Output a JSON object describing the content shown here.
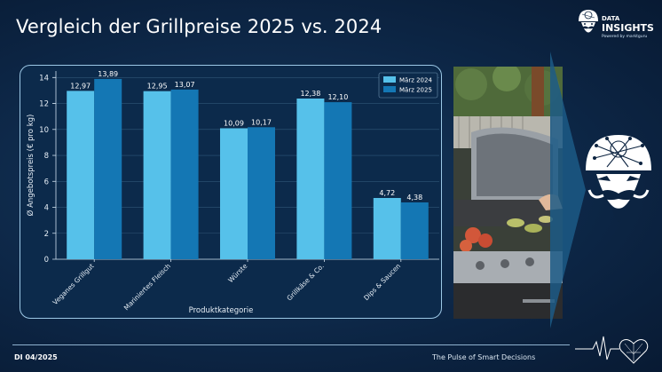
{
  "header": {
    "title": "Vergleich der Grillpreise 2025 vs. 2024"
  },
  "brand": {
    "line1": "DATA",
    "line2": "INSIGHTS",
    "line3": "Powered by marktguru"
  },
  "footer": {
    "issue": "DI 04/2025",
    "tagline": "The Pulse of Smart Decisions"
  },
  "colors": {
    "series_2024": "#56c1ea",
    "series_2025": "#1477b4",
    "background": "#0b2340"
  },
  "chart_data": {
    "type": "bar",
    "categories": [
      "Veganes Grillgut",
      "Mariniertes Fleisch",
      "Würste",
      "Grillkäse & Co.",
      "Dips & Saucen"
    ],
    "series": [
      {
        "name": "März 2024",
        "values": [
          12.97,
          12.95,
          10.09,
          12.38,
          4.72
        ],
        "labels": [
          "12,97",
          "12,95",
          "10,09",
          "12,38",
          "4,72"
        ]
      },
      {
        "name": "März 2025",
        "values": [
          13.89,
          13.07,
          10.17,
          12.1,
          4.38
        ],
        "labels": [
          "13,89",
          "13,07",
          "10,17",
          "12,10",
          "4,38"
        ]
      }
    ],
    "xlabel": "Produktkategorie",
    "ylabel": "Ø Angebotspreis (€ pro kg)",
    "ylim": [
      0,
      14.5
    ],
    "yticks": [
      0,
      2,
      4,
      6,
      8,
      10,
      12,
      14
    ],
    "grid": true,
    "legend": "top-right"
  }
}
